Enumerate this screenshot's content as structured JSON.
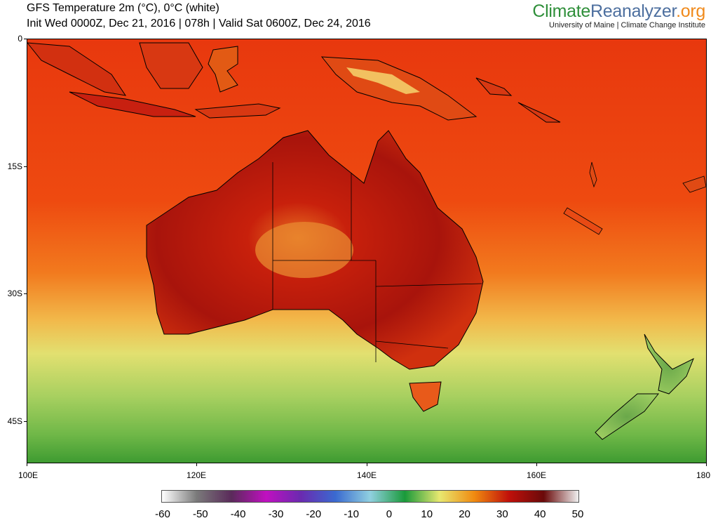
{
  "header": {
    "title_line1": "GFS Temperature 2m (°C), 0°C (white)",
    "title_line2": "Init Wed 0000Z, Dec 21, 2016 | 078h | Valid Sat 0600Z, Dec 24, 2016"
  },
  "brand": {
    "logo_part1": "Climate",
    "logo_part2": "Reanalyzer",
    "logo_part3": ".org",
    "subtitle": "University of Maine | Climate Change Institute"
  },
  "map": {
    "lat_ticks": [
      "0",
      "15S",
      "30S",
      "45S"
    ],
    "lat_values": [
      0,
      -15,
      -30,
      -45
    ],
    "lon_ticks": [
      "100E",
      "120E",
      "140E",
      "160E",
      "180"
    ],
    "lon_values": [
      100,
      120,
      140,
      160,
      180
    ],
    "extent": {
      "lon": [
        100,
        180
      ],
      "lat": [
        -50,
        0
      ]
    },
    "regions": [
      "Australia",
      "New Guinea",
      "Indonesia",
      "Tasmania",
      "New Zealand"
    ]
  },
  "colorbar": {
    "labels": [
      "-60",
      "-50",
      "-40",
      "-30",
      "-20",
      "-10",
      "0",
      "10",
      "20",
      "30",
      "40",
      "50"
    ],
    "min": -60,
    "max": 50,
    "colors": [
      "#ffffff",
      "#7a7a7a",
      "#5a2a5a",
      "#c010c0",
      "#6a2ab0",
      "#3a6ad0",
      "#90d0e0",
      "#1a9a3a",
      "#e8e870",
      "#f08a10",
      "#c0100a",
      "#6a0a0a",
      "#f0f0f0"
    ]
  }
}
